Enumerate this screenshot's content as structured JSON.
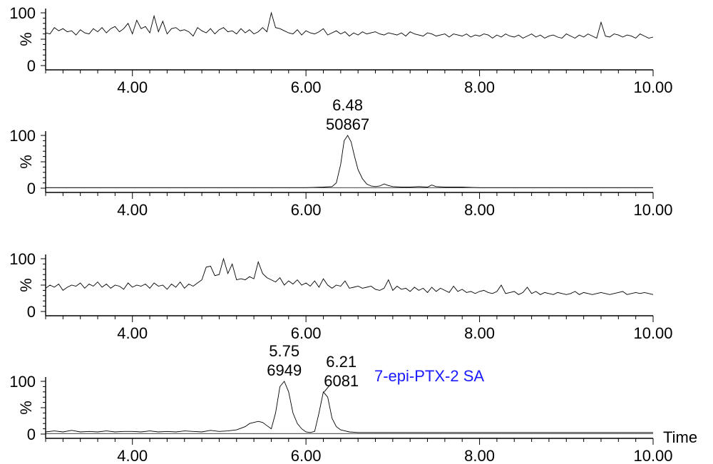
{
  "chart_data": [
    {
      "type": "line",
      "xlim": [
        3.0,
        10.0
      ],
      "ylim": [
        0,
        100
      ],
      "ytick_labels": [
        "0",
        "100"
      ],
      "ylabel": "%",
      "xtick_labels": [
        "4.00",
        "6.00",
        "8.00",
        "10.00"
      ],
      "xticks": [
        4.0,
        6.0,
        8.0,
        10.0
      ],
      "peaks": [],
      "compound_label": "",
      "series": [
        {
          "x": [
            3.0,
            3.05,
            3.1,
            3.15,
            3.2,
            3.25,
            3.3,
            3.35,
            3.4,
            3.45,
            3.5,
            3.55,
            3.6,
            3.65,
            3.7,
            3.75,
            3.8,
            3.85,
            3.9,
            3.95,
            4.0,
            4.05,
            4.1,
            4.15,
            4.2,
            4.25,
            4.3,
            4.35,
            4.4,
            4.45,
            4.5,
            4.55,
            4.6,
            4.65,
            4.7,
            4.75,
            4.8,
            4.85,
            4.9,
            4.95,
            5.0,
            5.05,
            5.1,
            5.15,
            5.2,
            5.25,
            5.3,
            5.35,
            5.4,
            5.45,
            5.5,
            5.55,
            5.6,
            5.65,
            5.7,
            5.75,
            5.8,
            5.85,
            5.9,
            5.95,
            6.0,
            6.05,
            6.1,
            6.15,
            6.2,
            6.25,
            6.3,
            6.35,
            6.4,
            6.45,
            6.5,
            6.55,
            6.6,
            6.65,
            6.7,
            6.75,
            6.8,
            6.85,
            6.9,
            6.95,
            7.0,
            7.05,
            7.1,
            7.15,
            7.2,
            7.25,
            7.3,
            7.35,
            7.4,
            7.45,
            7.5,
            7.55,
            7.6,
            7.65,
            7.7,
            7.75,
            7.8,
            7.85,
            7.9,
            7.95,
            8.0,
            8.05,
            8.1,
            8.15,
            8.2,
            8.25,
            8.3,
            8.35,
            8.4,
            8.45,
            8.5,
            8.55,
            8.6,
            8.65,
            8.7,
            8.75,
            8.8,
            8.85,
            8.9,
            8.95,
            9.0,
            9.05,
            9.1,
            9.15,
            9.2,
            9.25,
            9.3,
            9.35,
            9.4,
            9.45,
            9.5,
            9.55,
            9.6,
            9.65,
            9.7,
            9.75,
            9.8,
            9.85,
            9.9,
            9.95,
            10.0
          ],
          "y": [
            62,
            60,
            72,
            66,
            70,
            64,
            66,
            58,
            68,
            62,
            60,
            70,
            64,
            72,
            62,
            70,
            74,
            64,
            70,
            80,
            60,
            86,
            70,
            74,
            62,
            94,
            64,
            84,
            60,
            70,
            72,
            66,
            68,
            64,
            56,
            72,
            66,
            62,
            70,
            60,
            68,
            72,
            64,
            66,
            60,
            70,
            62,
            68,
            60,
            64,
            72,
            64,
            100,
            72,
            70,
            66,
            62,
            60,
            68,
            58,
            66,
            62,
            60,
            64,
            70,
            58,
            62,
            66,
            60,
            64,
            56,
            62,
            58,
            64,
            60,
            62,
            64,
            60,
            58,
            62,
            60,
            58,
            62,
            56,
            64,
            60,
            58,
            56,
            62,
            60,
            56,
            58,
            60,
            54,
            60,
            58,
            56,
            60,
            54,
            58,
            56,
            60,
            58,
            52,
            58,
            54,
            60,
            56,
            54,
            58,
            52,
            56,
            60,
            54,
            58,
            52,
            56,
            58,
            54,
            52,
            60,
            56,
            52,
            58,
            54,
            60,
            56,
            52,
            82,
            56,
            54,
            60,
            58,
            54,
            58,
            56,
            52,
            60,
            56,
            52,
            54
          ]
        }
      ]
    },
    {
      "type": "line",
      "xlim": [
        3.0,
        10.0
      ],
      "ylim": [
        0,
        100
      ],
      "ytick_labels": [
        "0",
        "100"
      ],
      "ylabel": "%",
      "xtick_labels": [
        "4.00",
        "6.00",
        "8.00",
        "10.00"
      ],
      "xticks": [
        4.0,
        6.0,
        8.0,
        10.0
      ],
      "peaks": [
        {
          "rt": "6.48",
          "area": "50867",
          "x": 6.48
        }
      ],
      "compound_label": "",
      "series": [
        {
          "x": [
            3.0,
            3.5,
            4.0,
            4.5,
            5.0,
            5.5,
            6.0,
            6.2,
            6.3,
            6.35,
            6.4,
            6.44,
            6.48,
            6.52,
            6.56,
            6.6,
            6.65,
            6.7,
            6.75,
            6.8,
            6.85,
            6.9,
            6.95,
            7.0,
            7.1,
            7.2,
            7.3,
            7.4,
            7.45,
            7.5,
            7.6,
            7.7,
            7.8,
            8.0,
            8.5,
            9.0,
            9.5,
            10.0
          ],
          "y": [
            1,
            1,
            1,
            1,
            1,
            1,
            1,
            2,
            3,
            10,
            45,
            90,
            100,
            88,
            60,
            35,
            18,
            8,
            4,
            3,
            4,
            8,
            5,
            3,
            2,
            2,
            3,
            2,
            6,
            3,
            2,
            2,
            2,
            1,
            1,
            1,
            1,
            1
          ]
        }
      ]
    },
    {
      "type": "line",
      "xlim": [
        3.0,
        10.0
      ],
      "ylim": [
        0,
        100
      ],
      "ytick_labels": [
        "0",
        "100"
      ],
      "ylabel": "%",
      "xtick_labels": [
        "4.00",
        "6.00",
        "8.00",
        "10.00"
      ],
      "xticks": [
        4.0,
        6.0,
        8.0,
        10.0
      ],
      "peaks": [],
      "compound_label": "",
      "series": [
        {
          "x": [
            3.0,
            3.05,
            3.1,
            3.15,
            3.2,
            3.25,
            3.3,
            3.35,
            3.4,
            3.45,
            3.5,
            3.55,
            3.6,
            3.65,
            3.7,
            3.75,
            3.8,
            3.85,
            3.9,
            3.95,
            4.0,
            4.05,
            4.1,
            4.15,
            4.2,
            4.25,
            4.3,
            4.35,
            4.4,
            4.45,
            4.5,
            4.55,
            4.6,
            4.65,
            4.7,
            4.75,
            4.8,
            4.85,
            4.9,
            4.95,
            5.0,
            5.05,
            5.1,
            5.15,
            5.2,
            5.25,
            5.3,
            5.35,
            5.4,
            5.45,
            5.5,
            5.55,
            5.6,
            5.65,
            5.7,
            5.75,
            5.8,
            5.85,
            5.9,
            5.95,
            6.0,
            6.05,
            6.1,
            6.15,
            6.2,
            6.25,
            6.3,
            6.35,
            6.4,
            6.45,
            6.5,
            6.55,
            6.6,
            6.65,
            6.7,
            6.75,
            6.8,
            6.85,
            6.9,
            6.95,
            7.0,
            7.05,
            7.1,
            7.15,
            7.2,
            7.25,
            7.3,
            7.35,
            7.4,
            7.45,
            7.5,
            7.55,
            7.6,
            7.65,
            7.7,
            7.75,
            7.8,
            7.85,
            7.9,
            7.95,
            8.0,
            8.05,
            8.1,
            8.15,
            8.2,
            8.25,
            8.3,
            8.35,
            8.4,
            8.45,
            8.5,
            8.55,
            8.6,
            8.65,
            8.7,
            8.75,
            8.8,
            8.85,
            8.9,
            8.95,
            9.0,
            9.05,
            9.1,
            9.15,
            9.2,
            9.25,
            9.3,
            9.35,
            9.4,
            9.45,
            9.5,
            9.55,
            9.6,
            9.65,
            9.7,
            9.75,
            9.8,
            9.85,
            9.9,
            9.95,
            10.0
          ],
          "y": [
            44,
            50,
            46,
            52,
            40,
            46,
            50,
            48,
            54,
            44,
            52,
            48,
            56,
            46,
            52,
            44,
            50,
            48,
            42,
            54,
            46,
            50,
            48,
            52,
            44,
            54,
            48,
            50,
            42,
            52,
            46,
            56,
            44,
            52,
            48,
            54,
            60,
            84,
            86,
            68,
            70,
            100,
            72,
            90,
            60,
            62,
            60,
            66,
            62,
            94,
            72,
            64,
            60,
            56,
            64,
            50,
            58,
            52,
            60,
            50,
            54,
            48,
            58,
            46,
            62,
            50,
            44,
            50,
            48,
            58,
            44,
            46,
            48,
            44,
            46,
            48,
            42,
            40,
            44,
            60,
            40,
            48,
            42,
            44,
            38,
            46,
            40,
            44,
            36,
            46,
            38,
            44,
            40,
            36,
            48,
            38,
            42,
            36,
            38,
            34,
            38,
            40,
            36,
            34,
            38,
            50,
            34,
            36,
            38,
            32,
            36,
            46,
            34,
            38,
            32,
            36,
            34,
            32,
            36,
            34,
            32,
            34,
            38,
            32,
            36,
            34,
            32,
            34,
            36,
            34,
            32,
            34,
            36,
            38,
            32,
            34,
            36,
            34,
            36,
            34,
            32
          ]
        }
      ]
    },
    {
      "type": "line",
      "xlim": [
        3.0,
        10.0
      ],
      "ylim": [
        0,
        100
      ],
      "ytick_labels": [
        "0",
        "100"
      ],
      "ylabel": "%",
      "xtick_labels": [
        "4.00",
        "6.00",
        "8.00",
        "10.00"
      ],
      "xticks": [
        4.0,
        6.0,
        8.0,
        10.0
      ],
      "x_axis_title": "Time",
      "peaks": [
        {
          "rt": "5.75",
          "area": "6949",
          "x": 5.75
        },
        {
          "rt": "6.21",
          "area": "6081",
          "x": 6.21
        }
      ],
      "compound_label": "7-epi-PTX-2 SA",
      "compound_color": "#1a1aff",
      "series": [
        {
          "x": [
            3.0,
            3.1,
            3.2,
            3.3,
            3.4,
            3.5,
            3.6,
            3.7,
            3.8,
            3.9,
            4.0,
            4.1,
            4.2,
            4.3,
            4.4,
            4.5,
            4.6,
            4.7,
            4.8,
            4.9,
            5.0,
            5.1,
            5.2,
            5.3,
            5.35,
            5.4,
            5.45,
            5.5,
            5.55,
            5.6,
            5.65,
            5.7,
            5.75,
            5.8,
            5.85,
            5.9,
            5.95,
            6.0,
            6.05,
            6.1,
            6.15,
            6.2,
            6.25,
            6.3,
            6.35,
            6.4,
            6.45,
            6.5,
            6.6,
            6.8,
            7.0,
            7.5,
            8.0,
            8.5,
            9.0,
            9.5,
            10.0
          ],
          "y": [
            4,
            6,
            4,
            7,
            4,
            5,
            4,
            6,
            4,
            5,
            5,
            4,
            6,
            4,
            5,
            4,
            6,
            5,
            4,
            7,
            5,
            6,
            8,
            14,
            20,
            22,
            24,
            22,
            16,
            10,
            40,
            90,
            100,
            80,
            40,
            20,
            10,
            4,
            3,
            5,
            40,
            80,
            70,
            30,
            14,
            8,
            6,
            4,
            3,
            3,
            3,
            3,
            3,
            3,
            3,
            3,
            3
          ]
        }
      ]
    }
  ]
}
